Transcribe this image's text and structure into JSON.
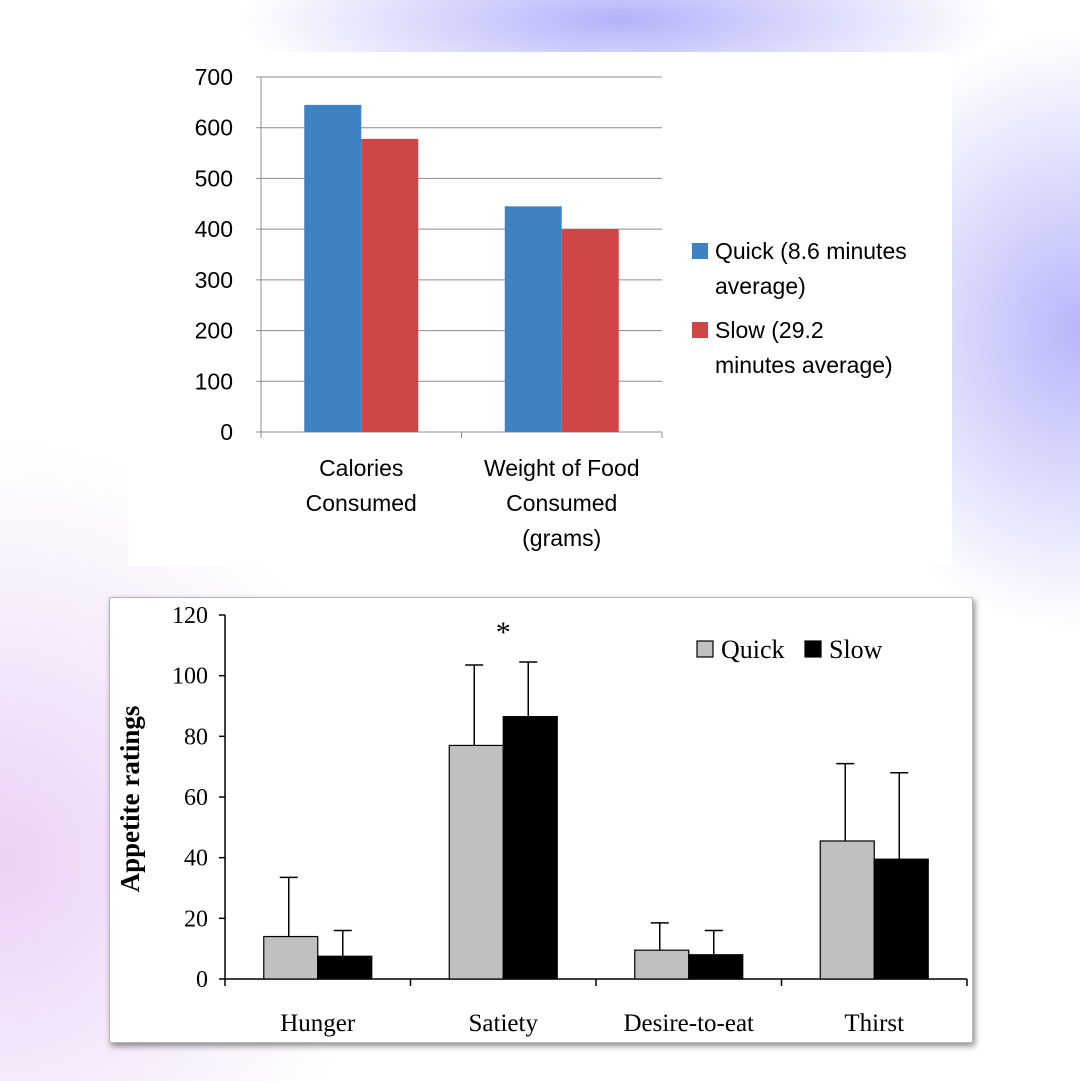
{
  "chart_data": [
    {
      "type": "bar",
      "categories": [
        [
          "Calories",
          "Consumed"
        ],
        [
          "Weight of Food",
          "Consumed",
          "(grams)"
        ]
      ],
      "series": [
        {
          "name": [
            "Quick (8.6 minutes",
            "average)"
          ],
          "values": [
            645,
            445
          ],
          "color": "#3e82c2"
        },
        {
          "name": [
            "Slow (29.2",
            "minutes average)"
          ],
          "values": [
            578,
            400
          ],
          "color": "#cf4545"
        }
      ],
      "yticks": [
        "0",
        "100",
        "200",
        "300",
        "400",
        "500",
        "600",
        "700"
      ],
      "ylim": [
        0,
        700
      ],
      "grid": true,
      "legend": "right"
    },
    {
      "type": "bar",
      "categories": [
        "Hunger",
        "Satiety",
        "Desire-to-eat",
        "Thirst"
      ],
      "series": [
        {
          "name": "Quick",
          "values": [
            14,
            77,
            9.5,
            45.5
          ],
          "errors": [
            19.5,
            26.5,
            9,
            25.5
          ],
          "color": "#c0c0c0"
        },
        {
          "name": "Slow",
          "values": [
            7.5,
            86.5,
            8,
            39.5
          ],
          "errors": [
            8.5,
            18,
            8,
            28.5
          ],
          "color": "#000000"
        }
      ],
      "ylabel": "Appetite ratings",
      "yticks": [
        "0",
        "20",
        "40",
        "60",
        "80",
        "100",
        "120"
      ],
      "ylim": [
        0,
        120
      ],
      "annotations": [
        {
          "text": "*",
          "category": "Satiety"
        }
      ],
      "legend": "top-right"
    }
  ]
}
